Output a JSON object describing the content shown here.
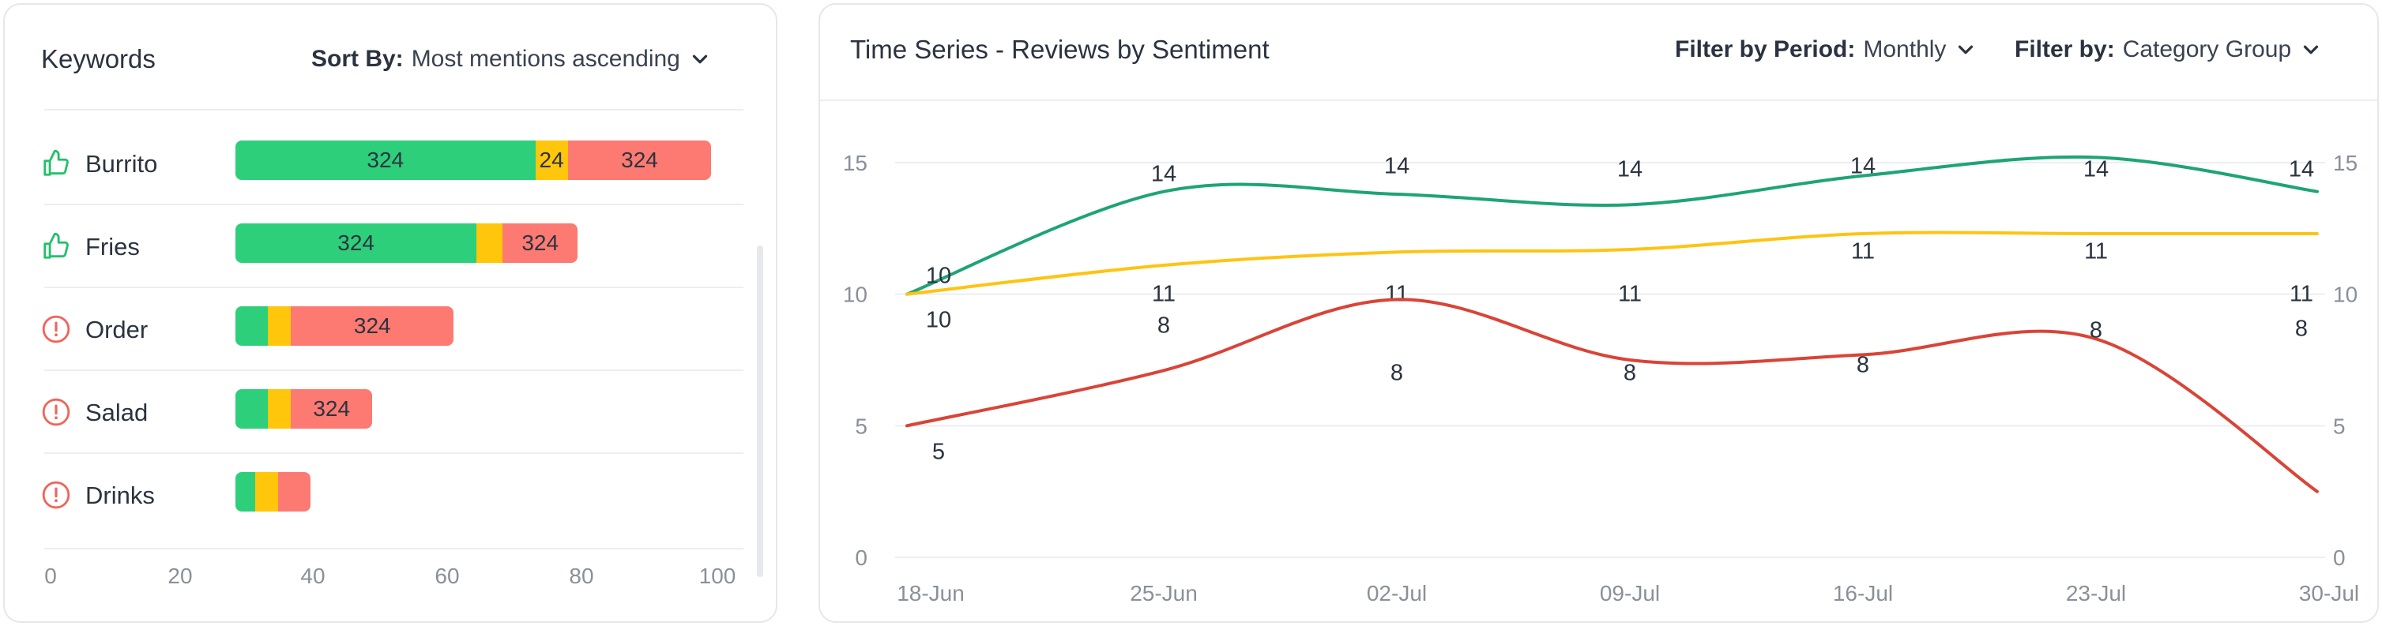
{
  "keywords": {
    "title": "Keywords",
    "sort_label": "Sort By:",
    "sort_value": "Most mentions ascending",
    "items": [
      {
        "label": "Burrito",
        "icon": "thumbs-up-icon",
        "pos": 46,
        "neu": 5,
        "neg": 22,
        "pos_label": "324",
        "neu_label": "24",
        "neg_label": "324"
      },
      {
        "label": "Fries",
        "icon": "thumbs-up-icon",
        "pos": 37,
        "neu": 4,
        "neg": 11.5,
        "pos_label": "324",
        "neu_label": "",
        "neg_label": "324"
      },
      {
        "label": "Order",
        "icon": "alert-circle-icon",
        "pos": 5,
        "neu": 3.5,
        "neg": 25,
        "pos_label": "",
        "neu_label": "",
        "neg_label": "324"
      },
      {
        "label": "Salad",
        "icon": "alert-circle-icon",
        "pos": 5,
        "neu": 3.5,
        "neg": 12.5,
        "pos_label": "",
        "neu_label": "",
        "neg_label": "324"
      },
      {
        "label": "Drinks",
        "icon": "alert-circle-icon",
        "pos": 3,
        "neu": 3.5,
        "neg": 5,
        "pos_label": "",
        "neu_label": "",
        "neg_label": ""
      }
    ],
    "axis_ticks": [
      "0",
      "20",
      "40",
      "60",
      "80",
      "100"
    ],
    "axis_values": [
      0,
      20,
      40,
      60,
      80,
      100
    ],
    "colors": {
      "positive": "#2ecf7a",
      "neutral": "#ffc60b",
      "negative": "#fc7a72",
      "thumb": "#22c06c",
      "alert": "#f0655b"
    }
  },
  "timeseries": {
    "title": "Time Series - Reviews by Sentiment",
    "filter_period_label": "Filter by Period:",
    "filter_period_value": "Monthly",
    "filter_category_label": "Filter by:",
    "filter_category_value": "Category Group"
  },
  "chart_data": {
    "type": "line",
    "x": [
      "18-Jun",
      "25-Jun",
      "02-Jul",
      "09-Jul",
      "16-Jul",
      "23-Jul",
      "30-Jul"
    ],
    "ylim": [
      0,
      15
    ],
    "yticks": [
      0,
      5,
      10,
      15
    ],
    "grid": true,
    "series": [
      {
        "color": "#1ea476",
        "values": [
          10,
          14,
          14,
          14,
          14,
          14,
          14
        ],
        "labels": [
          "10",
          "14",
          "14",
          "14",
          "14",
          "14",
          "14"
        ]
      },
      {
        "color": "#fec413",
        "values": [
          10,
          11,
          11,
          11,
          11,
          11,
          11
        ],
        "labels": [
          "10",
          "11",
          "11",
          "11",
          "11",
          "11",
          "11"
        ]
      },
      {
        "color": "#d94437",
        "values": [
          5,
          8,
          8,
          8,
          8,
          8,
          8
        ],
        "labels": [
          "5",
          "8",
          "8",
          "8",
          "8",
          "8",
          "8"
        ]
      }
    ]
  }
}
